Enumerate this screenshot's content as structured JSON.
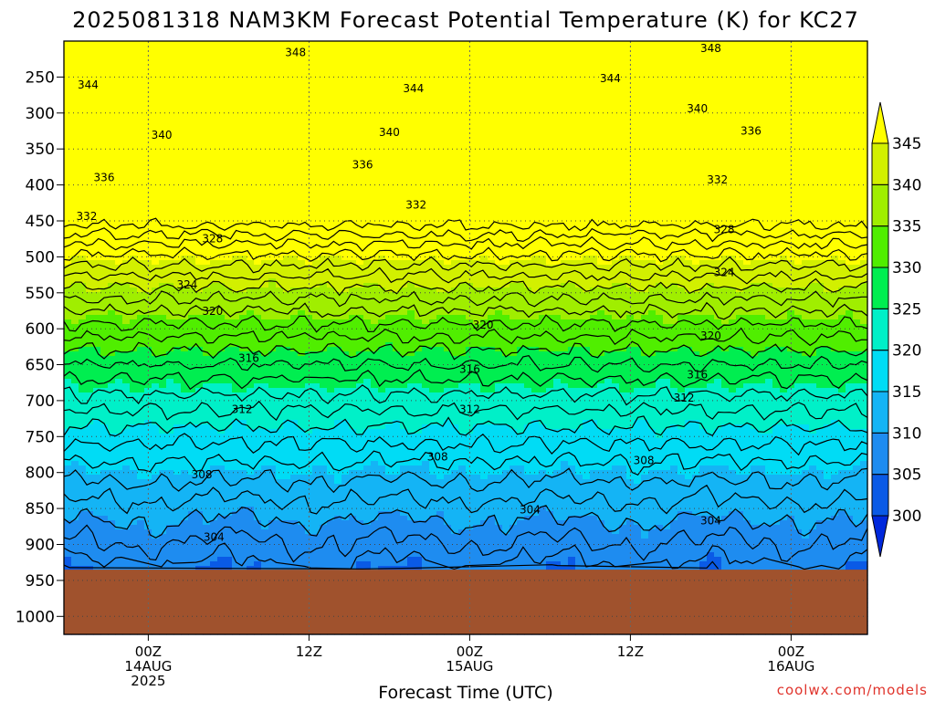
{
  "chart_data": {
    "type": "heatmap",
    "title": "2025081318 NAM3KM Forecast Potential Temperature (K) for KC27",
    "xlabel": "Forecast Time (UTC)",
    "ylabel": "",
    "y_axis": {
      "ticks": [
        250,
        300,
        350,
        400,
        450,
        500,
        550,
        600,
        650,
        700,
        750,
        800,
        850,
        900,
        950,
        1000
      ],
      "range": [
        200,
        1025
      ],
      "inverted": true,
      "units": "hPa"
    },
    "x_axis": {
      "range_hours": [
        -6.3,
        53.7
      ],
      "ticks": [
        {
          "hour": 0,
          "labels": [
            "00Z",
            "14AUG",
            "2025"
          ]
        },
        {
          "hour": 12,
          "labels": [
            "12Z"
          ]
        },
        {
          "hour": 24,
          "labels": [
            "00Z",
            "15AUG"
          ]
        },
        {
          "hour": 36,
          "labels": [
            "12Z"
          ]
        },
        {
          "hour": 48,
          "labels": [
            "00Z",
            "16AUG"
          ]
        }
      ]
    },
    "grid": true,
    "colorbar": {
      "levels": [
        300,
        305,
        310,
        315,
        320,
        325,
        330,
        335,
        340,
        345
      ],
      "colors": [
        "#0028dc",
        "#0a5ae6",
        "#1e8cf0",
        "#14b4f5",
        "#00dcf5",
        "#00f0c8",
        "#00ee50",
        "#50ee00",
        "#a0ee00",
        "#d2f000",
        "#ffff00"
      ],
      "placement": "right"
    },
    "contour_labels": [
      {
        "value": 348,
        "hour": 11,
        "p": 216
      },
      {
        "value": 348,
        "hour": 42,
        "p": 210
      },
      {
        "value": 344,
        "hour": -4.5,
        "p": 261
      },
      {
        "value": 344,
        "hour": 19.8,
        "p": 266
      },
      {
        "value": 344,
        "hour": 34.5,
        "p": 252
      },
      {
        "value": 340,
        "hour": 1,
        "p": 331
      },
      {
        "value": 340,
        "hour": 18,
        "p": 327
      },
      {
        "value": 340,
        "hour": 41,
        "p": 294
      },
      {
        "value": 336,
        "hour": -3.3,
        "p": 390
      },
      {
        "value": 336,
        "hour": 16,
        "p": 372
      },
      {
        "value": 336,
        "hour": 45,
        "p": 325
      },
      {
        "value": 332,
        "hour": -4.6,
        "p": 444
      },
      {
        "value": 332,
        "hour": 20,
        "p": 428
      },
      {
        "value": 332,
        "hour": 42.5,
        "p": 393
      },
      {
        "value": 328,
        "hour": 4.8,
        "p": 475
      },
      {
        "value": 328,
        "hour": 43,
        "p": 462
      },
      {
        "value": 324,
        "hour": 2.9,
        "p": 539
      },
      {
        "value": 324,
        "hour": 43,
        "p": 522
      },
      {
        "value": 320,
        "hour": 4.8,
        "p": 576
      },
      {
        "value": 320,
        "hour": 25,
        "p": 595
      },
      {
        "value": 320,
        "hour": 42,
        "p": 610
      },
      {
        "value": 316,
        "hour": 7.5,
        "p": 641
      },
      {
        "value": 316,
        "hour": 24,
        "p": 656
      },
      {
        "value": 316,
        "hour": 41,
        "p": 664
      },
      {
        "value": 312,
        "hour": 7,
        "p": 712
      },
      {
        "value": 312,
        "hour": 24,
        "p": 712
      },
      {
        "value": 312,
        "hour": 40,
        "p": 696
      },
      {
        "value": 308,
        "hour": 4,
        "p": 803
      },
      {
        "value": 308,
        "hour": 21.6,
        "p": 778
      },
      {
        "value": 308,
        "hour": 37,
        "p": 783
      },
      {
        "value": 304,
        "hour": 4.9,
        "p": 890
      },
      {
        "value": 304,
        "hour": 28.5,
        "p": 852
      },
      {
        "value": 304,
        "hour": 42,
        "p": 867
      }
    ],
    "ground": {
      "color": "#a0522d",
      "from_p": 935
    }
  },
  "credit": "coolwx.com/models",
  "colors": {
    "grid": "#8c8c8c",
    "contour": "#000000"
  }
}
